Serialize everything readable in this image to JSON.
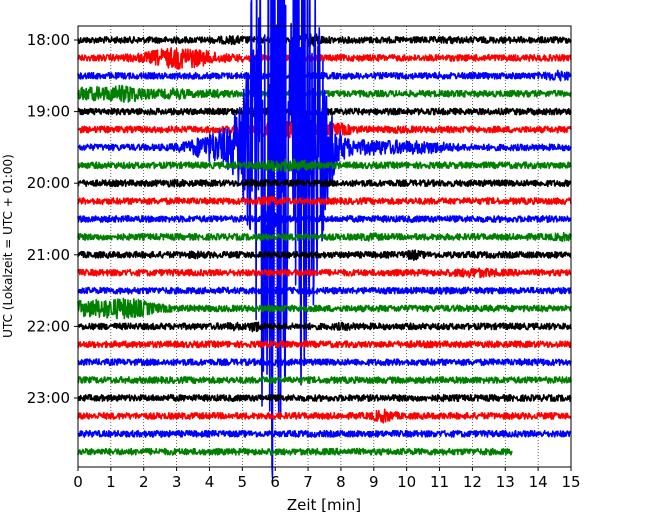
{
  "chart_data": {
    "type": "line",
    "title": "",
    "xlabel": "Zeit  [min]",
    "ylabel": "UTC (Lokalzeit = UTC + 01:00)",
    "xlim": [
      0,
      15
    ],
    "x_ticks": [
      0,
      1,
      2,
      3,
      4,
      5,
      6,
      7,
      8,
      9,
      10,
      11,
      12,
      13,
      14,
      15
    ],
    "x_tick_labels": [
      "0",
      "1",
      "2",
      "3",
      "4",
      "5",
      "6",
      "7",
      "8",
      "9",
      "10",
      "11",
      "12",
      "13",
      "14",
      "15"
    ],
    "y_tick_labels": [
      "18:00",
      "19:00",
      "20:00",
      "21:00",
      "22:00",
      "23:00"
    ],
    "grid": "vertical dotted lines at each minute",
    "color_cycle": [
      "#000000",
      "#ff0000",
      "#0000ff",
      "#008000"
    ],
    "traces": [
      {
        "start": "18:00",
        "color": "#000000",
        "end_min": 15,
        "events": [
          {
            "min": 4.7,
            "amp": 1.4,
            "dur": 0.4
          },
          {
            "min": 7.1,
            "amp": 2.2,
            "dur": 0.3
          },
          {
            "min": 11.3,
            "amp": 1.2,
            "dur": 0.3
          }
        ]
      },
      {
        "start": "18:15",
        "color": "#ff0000",
        "end_min": 15,
        "events": [
          {
            "min": 3.1,
            "amp": 3.5,
            "dur": 1.0
          },
          {
            "min": 5.2,
            "amp": 1.3,
            "dur": 0.3
          },
          {
            "min": 12.4,
            "amp": 1.1,
            "dur": 0.4
          }
        ]
      },
      {
        "start": "18:30",
        "color": "#0000ff",
        "end_min": 15,
        "events": [
          {
            "min": 14.6,
            "amp": 1.8,
            "dur": 0.3
          }
        ]
      },
      {
        "start": "18:45",
        "color": "#008000",
        "end_min": 15,
        "events": [
          {
            "min": 0.6,
            "amp": 2.2,
            "dur": 1.4
          },
          {
            "min": 1.6,
            "amp": 1.6,
            "dur": 0.5
          },
          {
            "min": 3.0,
            "amp": 1.7,
            "dur": 0.4
          },
          {
            "min": 4.1,
            "amp": 1.4,
            "dur": 0.4
          }
        ]
      },
      {
        "start": "19:00",
        "color": "#000000",
        "end_min": 15,
        "events": [
          {
            "min": 5.4,
            "amp": 1.5,
            "dur": 0.3
          },
          {
            "min": 6.2,
            "amp": 1.5,
            "dur": 0.3
          }
        ]
      },
      {
        "start": "19:15",
        "color": "#ff0000",
        "end_min": 15,
        "events": [
          {
            "min": 6.3,
            "amp": 2.6,
            "dur": 1.2
          },
          {
            "min": 8.0,
            "amp": 1.6,
            "dur": 0.4
          },
          {
            "min": 9.8,
            "amp": 1.2,
            "dur": 0.4
          }
        ]
      },
      {
        "start": "19:30",
        "color": "#0000ff",
        "end_min": 15,
        "events": [
          {
            "min": 6.0,
            "amp": 9.5,
            "dur": 1.3
          },
          {
            "min": 5.5,
            "amp": 7.5,
            "dur": 0.5
          },
          {
            "min": 6.6,
            "amp": 7.0,
            "dur": 0.6
          },
          {
            "min": 7.4,
            "amp": 4.0,
            "dur": 0.5
          },
          {
            "min": 3.9,
            "amp": 2.6,
            "dur": 0.7
          },
          {
            "min": 9.2,
            "amp": 2.4,
            "dur": 1.2
          },
          {
            "min": 10.8,
            "amp": 1.6,
            "dur": 0.6
          }
        ]
      },
      {
        "start": "19:45",
        "color": "#008000",
        "end_min": 15,
        "events": [
          {
            "min": 6.3,
            "amp": 2.0,
            "dur": 0.8
          }
        ]
      },
      {
        "start": "20:00",
        "color": "#000000",
        "end_min": 15,
        "events": [
          {
            "min": 2.9,
            "amp": 1.2,
            "dur": 0.3
          },
          {
            "min": 5.4,
            "amp": 1.3,
            "dur": 0.3
          }
        ]
      },
      {
        "start": "20:15",
        "color": "#ff0000",
        "end_min": 15,
        "events": [
          {
            "min": 5.9,
            "amp": 1.4,
            "dur": 0.4
          }
        ]
      },
      {
        "start": "20:30",
        "color": "#0000ff",
        "end_min": 15,
        "events": [
          {
            "min": 5.9,
            "amp": 3.2,
            "dur": 0.2
          }
        ]
      },
      {
        "start": "20:45",
        "color": "#008000",
        "end_min": 15,
        "events": [
          {
            "min": 8.9,
            "amp": 1.3,
            "dur": 0.3
          },
          {
            "min": 14.8,
            "amp": 1.4,
            "dur": 0.3
          }
        ]
      },
      {
        "start": "21:00",
        "color": "#000000",
        "end_min": 15,
        "events": [
          {
            "min": 3.6,
            "amp": 1.2,
            "dur": 0.3
          },
          {
            "min": 10.2,
            "amp": 1.8,
            "dur": 0.2
          }
        ]
      },
      {
        "start": "21:15",
        "color": "#ff0000",
        "end_min": 15,
        "events": [
          {
            "min": 12.1,
            "amp": 1.6,
            "dur": 0.6
          }
        ]
      },
      {
        "start": "21:30",
        "color": "#0000ff",
        "end_min": 15,
        "events": [
          {
            "min": 11.3,
            "amp": 1.1,
            "dur": 0.3
          }
        ]
      },
      {
        "start": "21:45",
        "color": "#008000",
        "end_min": 15,
        "events": [
          {
            "min": 0.7,
            "amp": 3.0,
            "dur": 1.2
          },
          {
            "min": 1.8,
            "amp": 1.6,
            "dur": 0.6
          }
        ]
      },
      {
        "start": "22:00",
        "color": "#000000",
        "end_min": 15,
        "events": [
          {
            "min": 4.7,
            "amp": 1.3,
            "dur": 0.3
          },
          {
            "min": 5.4,
            "amp": 1.9,
            "dur": 0.2
          },
          {
            "min": 8.1,
            "amp": 1.3,
            "dur": 0.3
          }
        ]
      },
      {
        "start": "22:15",
        "color": "#ff0000",
        "end_min": 15,
        "events": [
          {
            "min": 10.4,
            "amp": 1.1,
            "dur": 0.3
          }
        ]
      },
      {
        "start": "22:30",
        "color": "#0000ff",
        "end_min": 15,
        "events": [
          {
            "min": 14.0,
            "amp": 1.1,
            "dur": 0.3
          }
        ]
      },
      {
        "start": "22:45",
        "color": "#008000",
        "end_min": 15,
        "events": []
      },
      {
        "start": "23:00",
        "color": "#000000",
        "end_min": 15,
        "events": [
          {
            "min": 11.2,
            "amp": 1.1,
            "dur": 0.3
          }
        ]
      },
      {
        "start": "23:15",
        "color": "#ff0000",
        "end_min": 15,
        "events": [
          {
            "min": 9.3,
            "amp": 2.2,
            "dur": 0.3
          }
        ]
      },
      {
        "start": "23:30",
        "color": "#0000ff",
        "end_min": 15,
        "events": [
          {
            "min": 2.4,
            "amp": 1.1,
            "dur": 0.3
          }
        ]
      },
      {
        "start": "23:45",
        "color": "#008000",
        "end_min": 13.2,
        "events": []
      }
    ]
  }
}
